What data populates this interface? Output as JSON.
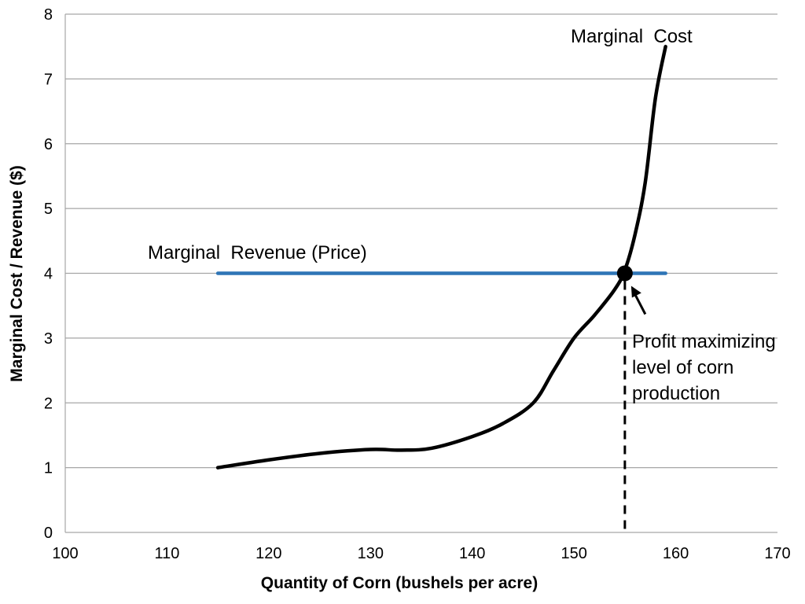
{
  "chart_data": {
    "type": "line",
    "xlabel": "Quantity of Corn (bushels per acre)",
    "ylabel": "Marginal Cost / Revenue ($)",
    "xlim": [
      100,
      170
    ],
    "ylim": [
      0,
      8
    ],
    "xticks": [
      "100",
      "110",
      "120",
      "130",
      "140",
      "150",
      "160",
      "170"
    ],
    "yticks": [
      "0",
      "1",
      "2",
      "3",
      "4",
      "5",
      "6",
      "7",
      "8"
    ],
    "grid": "horizontal",
    "series": [
      {
        "name": "Marginal Cost",
        "color": "#000000",
        "x": [
          115,
          120,
          125,
          130,
          133,
          136,
          140,
          143,
          146,
          148,
          150,
          152,
          154,
          155,
          156,
          157,
          158,
          159
        ],
        "y": [
          1.0,
          1.12,
          1.22,
          1.28,
          1.27,
          1.3,
          1.48,
          1.68,
          2.0,
          2.5,
          3.0,
          3.35,
          3.75,
          4.05,
          4.6,
          5.4,
          6.7,
          7.5
        ]
      },
      {
        "name": "Marginal Revenue (Price)",
        "color": "#2e75b6",
        "x": [
          115,
          159
        ],
        "y": [
          4,
          4
        ]
      }
    ],
    "annotations": {
      "mc_label": "Marginal  Cost",
      "mr_label": "Marginal  Revenue (Price)",
      "optimum_line1": "Profit maximizing",
      "optimum_line2": "level of corn",
      "optimum_line3": "production",
      "optimum_point": {
        "x": 155,
        "y": 4
      }
    }
  }
}
